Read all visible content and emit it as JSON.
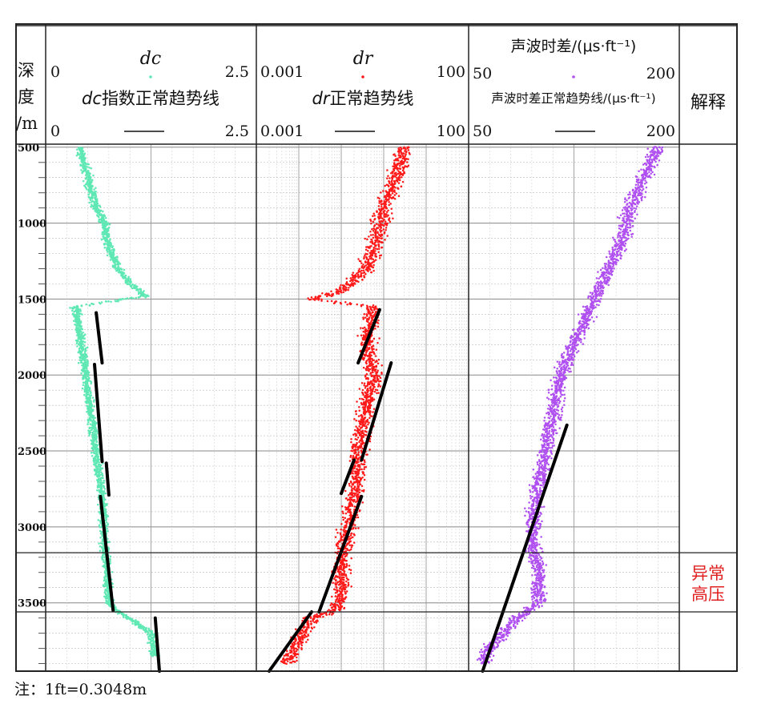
{
  "chart_data": {
    "type": "scatter",
    "depth_axis": {
      "label_chars": [
        "深",
        "度",
        "/m"
      ],
      "range": [
        480,
        3950
      ],
      "ticks": [
        500,
        1000,
        1500,
        2000,
        2500,
        3000,
        3500
      ]
    },
    "tracks": [
      {
        "id": "dc",
        "title": "dc",
        "trend_title_var": "dc",
        "trend_title_rest": "指数正常趋势线",
        "scale_min": "0",
        "scale_max": "2.5",
        "trend_min": "0",
        "trend_max": "2.5",
        "range": [
          0,
          2.5
        ],
        "log": false,
        "color": "#5fe8b4",
        "points": [
          [
            500,
            0.4
          ],
          [
            600,
            0.45
          ],
          [
            700,
            0.5
          ],
          [
            800,
            0.55
          ],
          [
            900,
            0.6
          ],
          [
            1000,
            0.7
          ],
          [
            1100,
            0.72
          ],
          [
            1200,
            0.78
          ],
          [
            1300,
            0.85
          ],
          [
            1400,
            1.0
          ],
          [
            1480,
            1.2
          ],
          [
            1550,
            0.35
          ],
          [
            1700,
            0.4
          ],
          [
            1900,
            0.45
          ],
          [
            2100,
            0.5
          ],
          [
            2300,
            0.55
          ],
          [
            2500,
            0.6
          ],
          [
            2700,
            0.65
          ],
          [
            2900,
            0.68
          ],
          [
            3100,
            0.7
          ],
          [
            3300,
            0.73
          ],
          [
            3500,
            0.75
          ],
          [
            3560,
            0.85
          ],
          [
            3600,
            1.0
          ],
          [
            3700,
            1.25
          ],
          [
            3850,
            1.3
          ]
        ],
        "trends": [
          [
            1590,
            0.6,
            1920,
            0.67
          ],
          [
            1930,
            0.58,
            2570,
            0.67
          ],
          [
            2580,
            0.72,
            2790,
            0.75
          ],
          [
            2800,
            0.65,
            3550,
            0.8
          ],
          [
            3600,
            1.3,
            3950,
            1.35
          ]
        ]
      },
      {
        "id": "dr",
        "title": "dr",
        "trend_title_var": "dr",
        "trend_title_rest": "正常趋势线",
        "scale_min": "0.001",
        "scale_max": "100",
        "trend_min": "0.001",
        "trend_max": "100",
        "range": [
          0.001,
          100
        ],
        "log": true,
        "color": "#ff1a1a",
        "points": [
          [
            500,
            3
          ],
          [
            700,
            2
          ],
          [
            900,
            1
          ],
          [
            1100,
            0.7
          ],
          [
            1300,
            0.4
          ],
          [
            1450,
            0.1
          ],
          [
            1500,
            0.02
          ],
          [
            1550,
            0.6
          ],
          [
            1800,
            0.4
          ],
          [
            2000,
            0.6
          ],
          [
            2200,
            0.4
          ],
          [
            2400,
            0.3
          ],
          [
            2600,
            0.25
          ],
          [
            2800,
            0.2
          ],
          [
            3000,
            0.15
          ],
          [
            3200,
            0.1
          ],
          [
            3400,
            0.1
          ],
          [
            3550,
            0.08
          ],
          [
            3600,
            0.02
          ],
          [
            3800,
            0.008
          ],
          [
            3900,
            0.005
          ]
        ],
        "trends": [
          [
            1570,
            0.8,
            1920,
            0.25
          ],
          [
            1920,
            1.5,
            2560,
            0.3
          ],
          [
            2560,
            0.2,
            2780,
            0.1
          ],
          [
            2800,
            0.3,
            3560,
            0.03
          ],
          [
            3560,
            0.02,
            3950,
            0.002
          ]
        ]
      },
      {
        "id": "ac",
        "title": "声波时差/(μs·ft⁻¹)",
        "trend_title": "声波时差正常趋势线/(μs·ft⁻¹)",
        "scale_min": "50",
        "scale_max": "200",
        "trend_min": "50",
        "trend_max": "200",
        "range": [
          50,
          200
        ],
        "log": false,
        "color": "#b050f0",
        "points": [
          [
            500,
            185
          ],
          [
            700,
            175
          ],
          [
            900,
            165
          ],
          [
            1100,
            160
          ],
          [
            1300,
            150
          ],
          [
            1500,
            140
          ],
          [
            1700,
            130
          ],
          [
            1900,
            120
          ],
          [
            2100,
            113
          ],
          [
            2300,
            110
          ],
          [
            2500,
            105
          ],
          [
            2700,
            100
          ],
          [
            2900,
            97
          ],
          [
            3100,
            95
          ],
          [
            3300,
            100
          ],
          [
            3500,
            100
          ],
          [
            3600,
            85
          ],
          [
            3800,
            65
          ],
          [
            3900,
            60
          ]
        ],
        "trends": [
          [
            2330,
            120,
            3950,
            60
          ]
        ]
      }
    ],
    "interpretation": {
      "header": "解释",
      "label_line1": "异常",
      "label_line2": "高压",
      "zone": [
        3170,
        3560
      ]
    }
  },
  "note": "注：1ft=0.3048m"
}
